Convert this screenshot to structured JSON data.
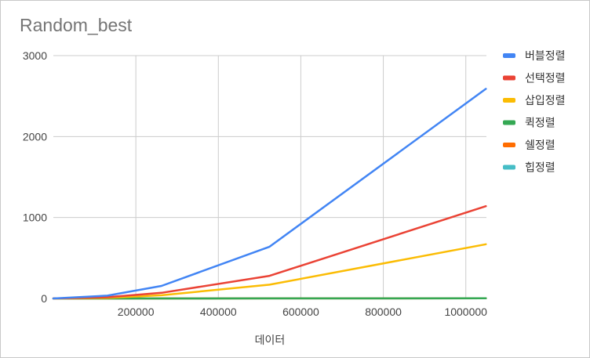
{
  "chart_data": {
    "type": "line",
    "title": "Random_best",
    "xlabel": "데이터",
    "ylabel": "",
    "xlim": [
      0,
      1050000
    ],
    "ylim": [
      0,
      3000
    ],
    "x_ticks": [
      200000,
      400000,
      600000,
      800000,
      1000000
    ],
    "x_tick_labels": [
      "200000",
      "400000",
      "600000",
      "800000",
      "1000000"
    ],
    "y_ticks": [
      0,
      1000,
      2000,
      3000
    ],
    "y_tick_labels": [
      "0",
      "1000",
      "2000",
      "3000"
    ],
    "grid": true,
    "legend_position": "right",
    "x": [
      0,
      131072,
      262144,
      524288,
      1048576
    ],
    "series": [
      {
        "name": "버블정렬",
        "color": "#4285f4",
        "values": [
          0,
          35,
          155,
          640,
          2590
        ]
      },
      {
        "name": "선택정렬",
        "color": "#ea4335",
        "values": [
          0,
          15,
          70,
          280,
          1140
        ]
      },
      {
        "name": "삽입정렬",
        "color": "#fbbc04",
        "values": [
          0,
          8,
          40,
          170,
          670
        ]
      },
      {
        "name": "퀵정렬",
        "color": "#34a853",
        "values": [
          0,
          0,
          0,
          1,
          2
        ]
      },
      {
        "name": "쉘정렬",
        "color": "#ff6d01",
        "values": [
          0,
          0,
          0,
          1,
          2
        ]
      },
      {
        "name": "힙정렬",
        "color": "#46bdc6",
        "values": [
          0,
          0,
          0,
          1,
          2
        ]
      }
    ]
  }
}
